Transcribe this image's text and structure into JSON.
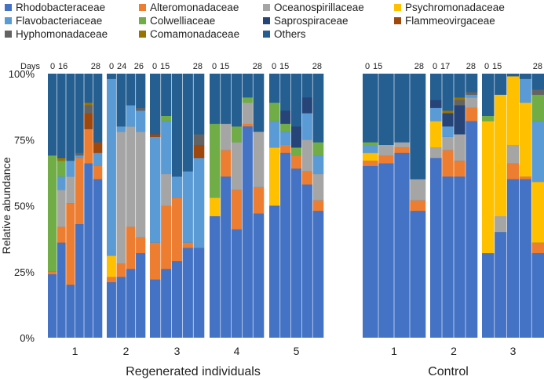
{
  "chart_data": {
    "type": "stacked_bar",
    "ylabel": "Relative abundance",
    "y_ticks": [
      "0%",
      "25%",
      "50%",
      "75%",
      "100%"
    ],
    "ylim": [
      0,
      100
    ],
    "days_label": "Days",
    "group_titles": [
      {
        "label": "Regenerated individuals",
        "panels": [
          0,
          4
        ]
      },
      {
        "label": "Control",
        "panels": [
          5,
          7
        ]
      }
    ],
    "legend": [
      {
        "name": "Rhodobacteraceae",
        "color": "#4472C4"
      },
      {
        "name": "Alteromonadaceae",
        "color": "#ED7D31"
      },
      {
        "name": "Oceanospirillaceae",
        "color": "#A5A5A5"
      },
      {
        "name": "Psychromonadaceae",
        "color": "#FFC000"
      },
      {
        "name": "Flavobacteriaceae",
        "color": "#5B9BD5"
      },
      {
        "name": "Colwelliaceae",
        "color": "#70AD47"
      },
      {
        "name": "Saprospiraceae",
        "color": "#264478"
      },
      {
        "name": "Flammeovirgaceae",
        "color": "#9E480E"
      },
      {
        "name": "Hyphomonadaceae",
        "color": "#636363"
      },
      {
        "name": "Comamonadaceae",
        "color": "#997300"
      },
      {
        "name": "Others",
        "color": "#255E91"
      }
    ],
    "panels": [
      {
        "label": "1",
        "days": [
          "0",
          "16",
          "28"
        ],
        "columns": [
          [
            24,
            1,
            0,
            0,
            0,
            44,
            0,
            0,
            0,
            0,
            31
          ],
          [
            36,
            6,
            14,
            0,
            5,
            6,
            0,
            0,
            0,
            1,
            32
          ],
          [
            20,
            31,
            10,
            0,
            6,
            0,
            0,
            0,
            0,
            0,
            33
          ],
          [
            43,
            25,
            0,
            0,
            1,
            0,
            0,
            0,
            1,
            0,
            30
          ],
          [
            66,
            13,
            0,
            0,
            0,
            0,
            0,
            6,
            3,
            1,
            11
          ],
          [
            60,
            5,
            0,
            0,
            5,
            0,
            0,
            4,
            0,
            0,
            26
          ]
        ]
      },
      {
        "label": "2",
        "days": [
          "0",
          "24",
          "26"
        ],
        "columns": [
          [
            21,
            2,
            0,
            8,
            67,
            0,
            0,
            0,
            0,
            0,
            2
          ],
          [
            23,
            5,
            50,
            0,
            2,
            0,
            0,
            0,
            0,
            0,
            20
          ],
          [
            26,
            16,
            38,
            0,
            8,
            0,
            0,
            0,
            0,
            0,
            12
          ],
          [
            32,
            6,
            40,
            0,
            8,
            0,
            0,
            0,
            1,
            0,
            13
          ]
        ]
      },
      {
        "label": "3",
        "days": [
          "0",
          "15",
          "28"
        ],
        "columns": [
          [
            22,
            14,
            0,
            0,
            40,
            0,
            0,
            1,
            0,
            0,
            23
          ],
          [
            26,
            24,
            12,
            0,
            20,
            2,
            0,
            0,
            0,
            0,
            16
          ],
          [
            29,
            24,
            0,
            0,
            8,
            0,
            0,
            0,
            0,
            0,
            39
          ],
          [
            34,
            2,
            0,
            0,
            27,
            0,
            0,
            0,
            0,
            0,
            37
          ],
          [
            34,
            0,
            0,
            0,
            34,
            0,
            0,
            5,
            4,
            0,
            23
          ]
        ]
      },
      {
        "label": "4",
        "days": [
          "0",
          "15",
          "28"
        ],
        "columns": [
          [
            46,
            0,
            0,
            7,
            0,
            28,
            0,
            0,
            0,
            0,
            19
          ],
          [
            61,
            10,
            10,
            0,
            0,
            0,
            0,
            0,
            0,
            0,
            19
          ],
          [
            41,
            15,
            18,
            0,
            0,
            6,
            0,
            0,
            0,
            0,
            20
          ],
          [
            80,
            1,
            8,
            0,
            0,
            2,
            0,
            0,
            0,
            0,
            9
          ],
          [
            47,
            10,
            21,
            0,
            0,
            0,
            0,
            0,
            0,
            0,
            22
          ]
        ]
      },
      {
        "label": "5",
        "days": [
          "0",
          "15",
          "28"
        ],
        "columns": [
          [
            50,
            0,
            0,
            22,
            10,
            7,
            0,
            0,
            0,
            0,
            11
          ],
          [
            70,
            3,
            0,
            0,
            5,
            3,
            5,
            0,
            0,
            0,
            14
          ],
          [
            64,
            5,
            0,
            0,
            0,
            3,
            8,
            0,
            0,
            0,
            20
          ],
          [
            58,
            5,
            12,
            0,
            10,
            0,
            6,
            0,
            0,
            0,
            9
          ],
          [
            48,
            4,
            10,
            0,
            7,
            5,
            0,
            0,
            0,
            0,
            26
          ]
        ]
      },
      {
        "label": "1",
        "days": [
          "0",
          "15",
          "28"
        ],
        "columns": [
          [
            65,
            2,
            0,
            3,
            3,
            1,
            0,
            0,
            0,
            0,
            26
          ],
          [
            66,
            3,
            4,
            0,
            0,
            0,
            0,
            0,
            0,
            0,
            27
          ],
          [
            70,
            2,
            2,
            0,
            0,
            0,
            0,
            0,
            0,
            0,
            26
          ],
          [
            48,
            4,
            8,
            0,
            0,
            0,
            0,
            0,
            0,
            0,
            40
          ]
        ]
      },
      {
        "label": "2",
        "days": [
          "0",
          "17",
          "28"
        ],
        "columns": [
          [
            68,
            0,
            4,
            10,
            5,
            0,
            3,
            0,
            0,
            0,
            10
          ],
          [
            61,
            10,
            5,
            0,
            4,
            0,
            5,
            0,
            0,
            1,
            14
          ],
          [
            61,
            6,
            10,
            0,
            0,
            0,
            11,
            0,
            2,
            1,
            9
          ],
          [
            82,
            5,
            4,
            0,
            1,
            0,
            0,
            0,
            1,
            0,
            7
          ]
        ]
      },
      {
        "label": "3",
        "days": [
          "0",
          "15",
          "28"
        ],
        "columns": [
          [
            32,
            0,
            0,
            50,
            0,
            2,
            0,
            0,
            0,
            0,
            16
          ],
          [
            40,
            0,
            6,
            46,
            0,
            0,
            0,
            0,
            0,
            0,
            8
          ],
          [
            60,
            6,
            7,
            26,
            0,
            0,
            0,
            0,
            0,
            0,
            1
          ],
          [
            60,
            1,
            0,
            28,
            9,
            0,
            0,
            0,
            0,
            0,
            2
          ],
          [
            32,
            4,
            0,
            23,
            23,
            10,
            0,
            0,
            2,
            0,
            6
          ]
        ]
      }
    ]
  }
}
